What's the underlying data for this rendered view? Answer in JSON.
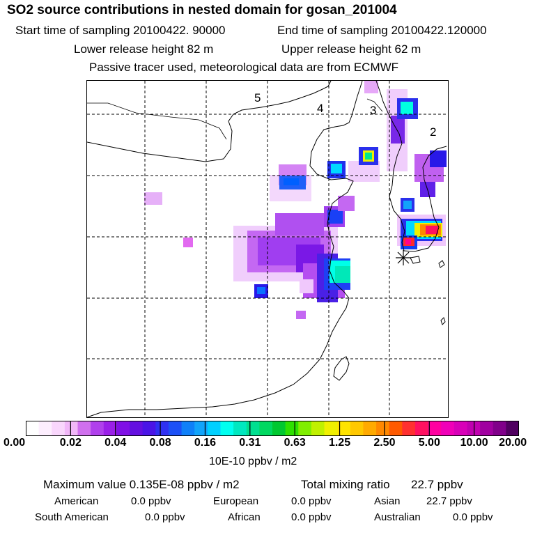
{
  "title": "SO2 source contributions in nested domain for gosan_201004",
  "header": {
    "start_time": "Start time of sampling 20100422. 90000",
    "end_time": "End time of sampling 20100422.120000",
    "lower_height": "Lower release height   82 m",
    "upper_height": "Upper release height   62 m",
    "note": "Passive tracer used, meteorological data are from ECMWF"
  },
  "map": {
    "region_labels": [
      "5",
      "4",
      "3",
      "2"
    ],
    "receptor_icon": "asterisk-icon"
  },
  "chart_data": {
    "type": "heatmap",
    "title": "SO2 source contributions in nested domain for gosan_201004",
    "colorbar": {
      "tick_labels": [
        "0.00",
        "0.02",
        "0.04",
        "0.08",
        "0.16",
        "0.31",
        "0.63",
        "1.25",
        "2.50",
        "5.00",
        "10.00",
        "20.00"
      ],
      "units": "10E-10 ppbv / m2",
      "colors": [
        "#ffffff",
        "#fdeefe",
        "#f9d6fc",
        "#f1b7f8",
        "#d070ee",
        "#b040ec",
        "#9a1fe8",
        "#8010e6",
        "#6410e0",
        "#4a14e6",
        "#2f30f2",
        "#1c50f6",
        "#0f80f8",
        "#12a4fa",
        "#00d0ff",
        "#00fff0",
        "#00e8c0",
        "#00e090",
        "#00d860",
        "#00c830",
        "#2ee000",
        "#80ee00",
        "#c0f000",
        "#f0f000",
        "#ffe400",
        "#ffc800",
        "#ffaa00",
        "#ff8800",
        "#ff5a00",
        "#ff3030",
        "#ff1060",
        "#ff00a0",
        "#f000b8",
        "#d800b8",
        "#c000b0",
        "#a000a0",
        "#80008a",
        "#500060"
      ]
    }
  },
  "stats": {
    "max_value": "Maximum value  0.135E-08 ppbv / m2",
    "total_label": "Total mixing ratio",
    "total_value": "22.7 ppbv",
    "contributions": [
      {
        "label": "American",
        "value": "0.0 ppbv"
      },
      {
        "label": "European",
        "value": "0.0 ppbv"
      },
      {
        "label": "Asian",
        "value": "22.7 ppbv"
      },
      {
        "label": "South American",
        "value": "0.0 ppbv"
      },
      {
        "label": "African",
        "value": "0.0 ppbv"
      },
      {
        "label": "Australian",
        "value": "0.0 ppbv"
      }
    ]
  }
}
